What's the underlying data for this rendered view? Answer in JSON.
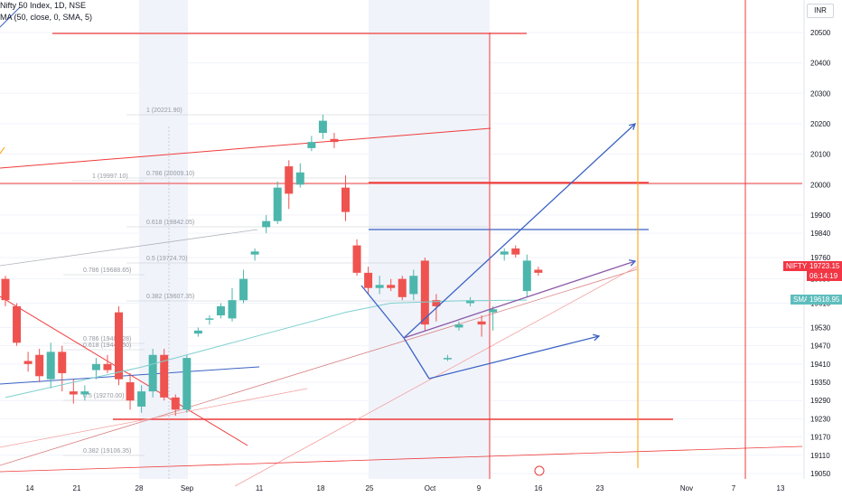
{
  "header": {
    "symbol_line": "Nifty 50 Index, 1D, NSE",
    "ma_line": "MA (50, close, 0, SMA, 5)"
  },
  "currency_button": "INR",
  "price_tags": {
    "last": {
      "symbol": "NIFTY",
      "price": "19723.15",
      "countdown": "06:14:19",
      "color": "#f23645"
    },
    "ma": {
      "symbol": "SMA",
      "price": "19618.95",
      "color": "#5fbdbd"
    }
  },
  "colors": {
    "up": "#4db6ac",
    "down": "#ef5350",
    "ma": "#7fcfcf",
    "red_line": "#ef3b3b",
    "blue_line": "#3b62c4",
    "orange_line": "#ff9800",
    "fib_text": "#9598a1",
    "grid": "#f0f3fa",
    "axis_text": "#131722",
    "session": "#f0f3fa"
  },
  "chart_data": {
    "type": "candlestick",
    "title": "Nifty 50 Index, 1D, NSE",
    "y_axis_ticks": [
      20500,
      20400,
      20300,
      20200,
      20100,
      20000,
      19900,
      19840,
      19760,
      19690,
      19610,
      19530,
      19470,
      19410,
      19350,
      19290,
      19230,
      19170,
      19110,
      19050
    ],
    "x_axis_ticks": [
      "14",
      "21",
      "28",
      "Sep",
      "11",
      "18",
      "25",
      "Oct",
      "9",
      "16",
      "23",
      "Nov",
      "7",
      "13"
    ],
    "ylim": [
      19045,
      20545
    ],
    "series": [
      {
        "name": "Nifty 50 Index",
        "ohlc": [
          [
            19690,
            19700,
            19600,
            19620
          ],
          [
            19600,
            19610,
            19470,
            19480
          ],
          [
            19420,
            19450,
            19385,
            19410
          ],
          [
            19440,
            19460,
            19350,
            19370
          ],
          [
            19360,
            19480,
            19330,
            19450
          ],
          [
            19450,
            19470,
            19320,
            19380
          ],
          [
            19320,
            19360,
            19280,
            19310
          ],
          [
            19310,
            19340,
            19290,
            19320
          ],
          [
            19390,
            19430,
            19360,
            19410
          ],
          [
            19410,
            19440,
            19380,
            19390
          ],
          [
            19580,
            19600,
            19340,
            19360
          ],
          [
            19350,
            19380,
            19260,
            19290
          ],
          [
            19270,
            19340,
            19250,
            19320
          ],
          [
            19320,
            19460,
            19300,
            19440
          ],
          [
            19440,
            19460,
            19290,
            19300
          ],
          [
            19300,
            19310,
            19240,
            19260
          ],
          [
            19260,
            19440,
            19250,
            19430
          ],
          [
            19510,
            19530,
            19500,
            19520
          ],
          [
            19560,
            19570,
            19540,
            19560
          ],
          [
            19570,
            19610,
            19560,
            19600
          ],
          [
            19560,
            19660,
            19550,
            19620
          ],
          [
            19620,
            19720,
            19610,
            19690
          ],
          [
            19770,
            19790,
            19750,
            19780
          ],
          [
            19860,
            19900,
            19840,
            19880
          ],
          [
            19880,
            20010,
            19870,
            19990
          ],
          [
            20060,
            20080,
            19920,
            19970
          ],
          [
            20000,
            20070,
            19990,
            20040
          ],
          [
            20120,
            20160,
            20110,
            20140
          ],
          [
            20170,
            20230,
            20150,
            20210
          ],
          [
            20150,
            20170,
            20120,
            20140
          ],
          [
            19990,
            20030,
            19880,
            19910
          ],
          [
            19800,
            19820,
            19700,
            19710
          ],
          [
            19710,
            19730,
            19640,
            19660
          ],
          [
            19660,
            19700,
            19640,
            19670
          ],
          [
            19670,
            19690,
            19650,
            19660
          ],
          [
            19690,
            19700,
            19620,
            19630
          ],
          [
            19640,
            19720,
            19620,
            19700
          ],
          [
            19750,
            19760,
            19520,
            19540
          ],
          [
            19620,
            19640,
            19550,
            19600
          ],
          [
            19430,
            19440,
            19420,
            19430
          ],
          [
            19530,
            19550,
            19520,
            19540
          ],
          [
            19610,
            19630,
            19600,
            19620
          ],
          [
            19550,
            19570,
            19500,
            19540
          ],
          [
            19580,
            19600,
            19520,
            19590
          ],
          [
            19770,
            19790,
            19750,
            19780
          ],
          [
            19790,
            19800,
            19760,
            19770
          ],
          [
            19650,
            19770,
            19630,
            19750
          ],
          [
            19720,
            19730,
            19700,
            19710
          ]
        ]
      },
      {
        "name": "MA (50, close, 0, SMA, 5)",
        "points": [
          [
            0,
            19300
          ],
          [
            6,
            19350
          ],
          [
            12,
            19400
          ],
          [
            18,
            19460
          ],
          [
            24,
            19520
          ],
          [
            30,
            19580
          ],
          [
            34,
            19610
          ],
          [
            40,
            19618
          ],
          [
            46,
            19620
          ]
        ]
      }
    ],
    "fib_labels": [
      {
        "text": "1 (20221.90)",
        "price": 20230
      },
      {
        "text": "0.786 (20009.10)",
        "price": 20009
      },
      {
        "text": "0.618 (19842.05)",
        "price": 19842
      },
      {
        "text": "0.5 (19724.70)",
        "price": 19725
      },
      {
        "text": "0.382 (19607.35)",
        "price": 19607
      },
      {
        "text": "1 (19997.10)",
        "price": 19997
      },
      {
        "text": "0.786 (19688.65)",
        "price": 19688
      },
      {
        "text": "0.618 (19446.50)",
        "price": 19446
      },
      {
        "text": "0.786 (19482.28)",
        "price": 19482
      },
      {
        "text": "0.5 (19270.00)",
        "price": 19270
      },
      {
        "text": "0.382 (19106.35)",
        "price": 19106
      }
    ]
  }
}
